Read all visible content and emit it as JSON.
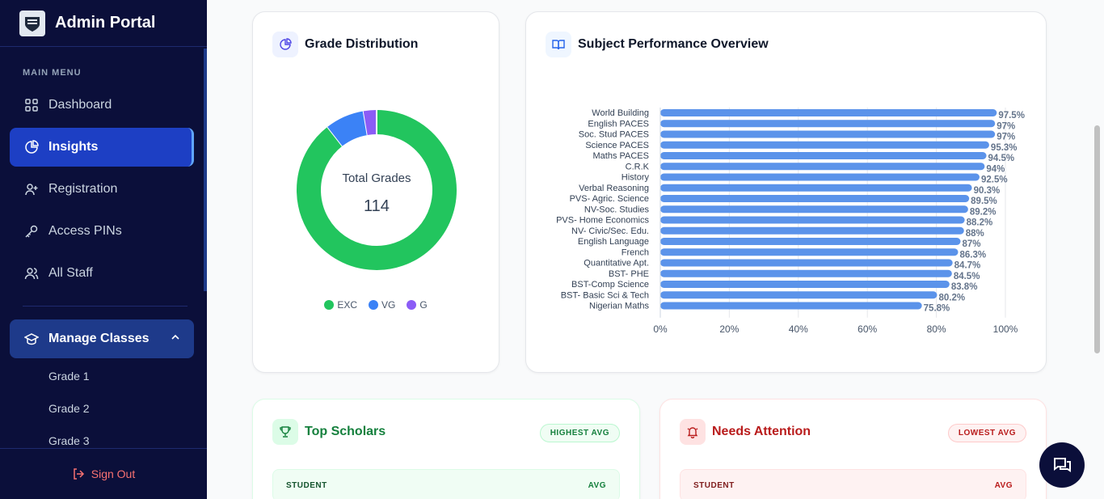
{
  "sidebar": {
    "brand_title": "Admin Portal",
    "menu_heading": "MAIN MENU",
    "items": [
      {
        "label": "Dashboard",
        "icon": "grid-icon"
      },
      {
        "label": "Insights",
        "icon": "pie-chart-icon",
        "active": true
      },
      {
        "label": "Registration",
        "icon": "user-plus-icon"
      },
      {
        "label": "Access PINs",
        "icon": "key-icon"
      },
      {
        "label": "All Staff",
        "icon": "users-icon"
      }
    ],
    "manage_classes": {
      "label": "Manage Classes",
      "sub_items": [
        "Grade 1",
        "Grade 2",
        "Grade 3"
      ]
    },
    "sign_out": "Sign Out"
  },
  "grade_distribution": {
    "title": "Grade Distribution",
    "center_label": "Total Grades",
    "center_value": "114",
    "colors": {
      "EXC": "#22c55e",
      "VG": "#3b82f6",
      "G": "#8b5cf6"
    }
  },
  "subject_performance": {
    "title": "Subject Performance Overview"
  },
  "chart_data": [
    {
      "type": "pie",
      "title": "Grade Distribution",
      "categories": [
        "EXC",
        "VG",
        "G"
      ],
      "values": [
        102,
        9,
        3
      ]
    },
    {
      "type": "bar",
      "orientation": "horizontal",
      "title": "Subject Performance Overview",
      "categories": [
        "World Building",
        "English PACES",
        "Soc. Stud PACES",
        "Science PACES",
        "Maths PACES",
        "C.R.K",
        "History",
        "Verbal Reasoning",
        "PVS- Agric. Science",
        "NV-Soc. Studies",
        "PVS- Home Economics",
        "NV- Civic/Sec. Edu.",
        "English Language",
        "French",
        "Quantitative Apt.",
        "BST- PHE",
        "BST-Comp Science",
        "BST- Basic Sci & Tech",
        "Nigerian Maths"
      ],
      "values": [
        97.5,
        97,
        97,
        95.3,
        94.5,
        94,
        92.5,
        90.3,
        89.5,
        89.2,
        88.2,
        88,
        87,
        86.3,
        84.7,
        84.5,
        83.8,
        80.2,
        75.8
      ],
      "value_labels": [
        "97.5%",
        "97%",
        "97%",
        "95.3%",
        "94.5%",
        "94%",
        "92.5%",
        "90.3%",
        "89.5%",
        "89.2%",
        "88.2%",
        "88%",
        "87%",
        "86.3%",
        "84.7%",
        "84.5%",
        "83.8%",
        "80.2%",
        "75.8%"
      ],
      "xlim": [
        0,
        100
      ],
      "xticks": [
        "0%",
        "20%",
        "40%",
        "60%",
        "80%",
        "100%"
      ],
      "grid": true,
      "color": "#5b93ea"
    }
  ],
  "top_scholars": {
    "title": "Top Scholars",
    "badge": "HIGHEST AVG",
    "col_student": "STUDENT",
    "col_avg": "AVG"
  },
  "needs_attention": {
    "title": "Needs Attention",
    "badge": "LOWEST AVG",
    "col_student": "STUDENT",
    "col_avg": "AVG"
  }
}
